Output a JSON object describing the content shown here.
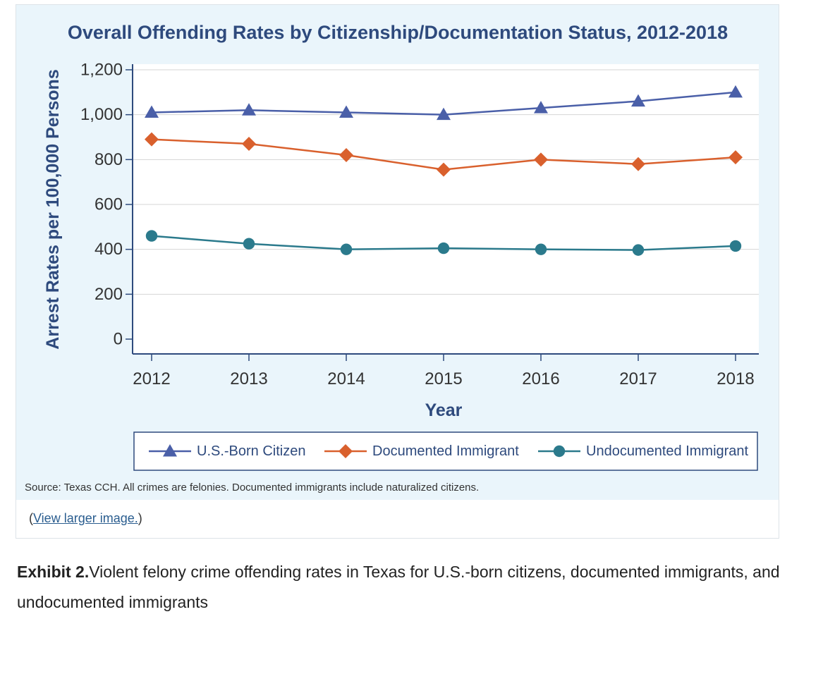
{
  "chart_data": {
    "type": "line",
    "title": "Overall Offending Rates by Citizenship/Documentation Status, 2012-2018",
    "xlabel": "Year",
    "ylabel": "Arrest Rates per 100,000 Persons",
    "x": [
      "2012",
      "2013",
      "2014",
      "2015",
      "2016",
      "2017",
      "2018"
    ],
    "yticks": [
      "0",
      "200",
      "400",
      "600",
      "800",
      "1,000",
      "1,200"
    ],
    "ylim": [
      0,
      1200
    ],
    "grid": true,
    "legend_position": "bottom",
    "series": [
      {
        "name": "U.S.-Born Citizen",
        "color": "#4a5fa8",
        "marker": "triangle",
        "values": [
          1010,
          1020,
          1010,
          1000,
          1030,
          1060,
          1100
        ]
      },
      {
        "name": "Documented Immigrant",
        "color": "#d9602d",
        "marker": "diamond",
        "values": [
          890,
          870,
          820,
          755,
          800,
          780,
          810
        ]
      },
      {
        "name": "Undocumented Immigrant",
        "color": "#2b7a8c",
        "marker": "circle",
        "values": [
          460,
          425,
          400,
          405,
          400,
          397,
          415
        ]
      }
    ],
    "source": "Source: Texas CCH. All crimes are felonies. Documented immigrants include naturalized citizens."
  },
  "link": {
    "open_paren": "(",
    "text": "View larger image.",
    "close_paren": ")"
  },
  "caption": {
    "label": "Exhibit 2.",
    "text": "Violent felony crime offending rates in Texas for U.S.-born citizens, documented immigrants, and undocumented immigrants"
  }
}
